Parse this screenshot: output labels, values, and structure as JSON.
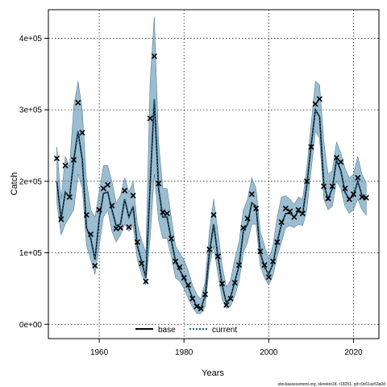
{
  "chart_data": {
    "type": "line",
    "xlabel": "Years",
    "ylabel": "Catch",
    "xlim": [
      1948,
      2026
    ],
    "ylim": [
      -20000,
      440000
    ],
    "x_ticks": [
      1960,
      1980,
      2000,
      2020
    ],
    "x_tick_labels": [
      "1960",
      "1980",
      "2000",
      "2020"
    ],
    "y_ticks": [
      0,
      100000,
      200000,
      300000,
      400000
    ],
    "y_tick_labels": [
      "0e+00",
      "1e+05",
      "2e+05",
      "3e+05",
      "4e+05"
    ],
    "grid": true,
    "legend_position": "bottom-center",
    "legend": [
      {
        "label": "base",
        "style": "solid",
        "color": "#000000"
      },
      {
        "label": "current",
        "style": "dotted",
        "color": "#1f5f7a"
      }
    ],
    "band_color": "#5a8fb0",
    "x": [
      1950,
      1951,
      1952,
      1953,
      1954,
      1955,
      1956,
      1957,
      1958,
      1959,
      1960,
      1961,
      1962,
      1963,
      1964,
      1965,
      1966,
      1967,
      1968,
      1969,
      1970,
      1971,
      1972,
      1973,
      1974,
      1975,
      1976,
      1977,
      1978,
      1979,
      1980,
      1981,
      1982,
      1983,
      1984,
      1985,
      1986,
      1987,
      1988,
      1989,
      1990,
      1991,
      1992,
      1993,
      1994,
      1995,
      1996,
      1997,
      1998,
      1999,
      2000,
      2001,
      2002,
      2003,
      2004,
      2005,
      2006,
      2007,
      2008,
      2009,
      2010,
      2011,
      2012,
      2013,
      2014,
      2015,
      2016,
      2017,
      2018,
      2019,
      2020,
      2021,
      2022,
      2023
    ],
    "series": [
      {
        "name": "base",
        "values": [
          200000,
          147000,
          185000,
          178000,
          230000,
          270000,
          230000,
          135000,
          120000,
          90000,
          148000,
          183000,
          185000,
          160000,
          138000,
          140000,
          175000,
          150000,
          165000,
          110000,
          88000,
          65000,
          195000,
          315000,
          190000,
          150000,
          150000,
          118000,
          88000,
          76000,
          65000,
          52000,
          37000,
          25000,
          22000,
          40000,
          100000,
          140000,
          95000,
          55000,
          30000,
          38000,
          60000,
          82000,
          130000,
          140000,
          170000,
          165000,
          100000,
          80000,
          70000,
          85000,
          115000,
          140000,
          155000,
          155000,
          150000,
          158000,
          155000,
          195000,
          250000,
          300000,
          290000,
          195000,
          175000,
          190000,
          230000,
          215000,
          185000,
          175000,
          180000,
          200000,
          180000,
          175000
        ]
      },
      {
        "name": "current",
        "values": [
          200000,
          147000,
          185000,
          178000,
          230000,
          270000,
          230000,
          135000,
          120000,
          90000,
          148000,
          183000,
          185000,
          160000,
          138000,
          140000,
          175000,
          150000,
          165000,
          110000,
          88000,
          65000,
          195000,
          315000,
          190000,
          150000,
          150000,
          118000,
          88000,
          76000,
          65000,
          52000,
          37000,
          25000,
          22000,
          40000,
          100000,
          140000,
          95000,
          55000,
          30000,
          38000,
          60000,
          82000,
          130000,
          140000,
          170000,
          165000,
          100000,
          80000,
          70000,
          85000,
          115000,
          140000,
          155000,
          155000,
          150000,
          158000,
          155000,
          195000,
          250000,
          300000,
          290000,
          195000,
          175000,
          190000,
          230000,
          215000,
          185000,
          175000,
          180000,
          200000,
          180000,
          175000
        ]
      }
    ],
    "band_upper": [
      248000,
      175000,
      235000,
      220000,
      305000,
      340000,
      300000,
      200000,
      160000,
      150000,
      185000,
      222000,
      222000,
      200000,
      170000,
      180000,
      205000,
      185000,
      200000,
      140000,
      118000,
      100000,
      340000,
      430000,
      255000,
      190000,
      190000,
      150000,
      110000,
      100000,
      90000,
      75000,
      55000,
      42000,
      35000,
      60000,
      130000,
      175000,
      130000,
      82000,
      52000,
      62000,
      92000,
      115000,
      160000,
      175000,
      205000,
      190000,
      130000,
      110000,
      92000,
      110000,
      150000,
      178000,
      180000,
      175000,
      168000,
      178000,
      175000,
      220000,
      280000,
      340000,
      335000,
      255000,
      210000,
      215000,
      255000,
      240000,
      218000,
      205000,
      210000,
      235000,
      210000,
      198000
    ],
    "band_lower": [
      170000,
      125000,
      140000,
      150000,
      160000,
      210000,
      190000,
      110000,
      90000,
      70000,
      110000,
      150000,
      160000,
      130000,
      115000,
      125000,
      140000,
      130000,
      138000,
      90000,
      70000,
      55000,
      120000,
      210000,
      145000,
      120000,
      120000,
      95000,
      65000,
      60000,
      50000,
      36000,
      24000,
      15000,
      15000,
      25000,
      80000,
      110000,
      70000,
      35000,
      22000,
      25000,
      40000,
      60000,
      100000,
      115000,
      140000,
      140000,
      82000,
      65000,
      55000,
      68000,
      95000,
      115000,
      135000,
      138000,
      135000,
      140000,
      138000,
      160000,
      215000,
      270000,
      260000,
      175000,
      160000,
      165000,
      200000,
      190000,
      165000,
      155000,
      160000,
      175000,
      160000,
      152000
    ],
    "points": [
      [
        1950,
        232000
      ],
      [
        1951,
        147000
      ],
      [
        1952,
        222000
      ],
      [
        1953,
        178000
      ],
      [
        1954,
        230000
      ],
      [
        1955,
        310000
      ],
      [
        1956,
        268000
      ],
      [
        1957,
        153000
      ],
      [
        1958,
        126000
      ],
      [
        1959,
        82000
      ],
      [
        1960,
        160000
      ],
      [
        1961,
        190000
      ],
      [
        1962,
        195000
      ],
      [
        1963,
        166000
      ],
      [
        1964,
        134000
      ],
      [
        1965,
        135000
      ],
      [
        1966,
        187000
      ],
      [
        1967,
        136000
      ],
      [
        1968,
        180000
      ],
      [
        1969,
        115000
      ],
      [
        1970,
        85000
      ],
      [
        1971,
        60000
      ],
      [
        1972,
        288000
      ],
      [
        1973,
        375000
      ],
      [
        1974,
        197000
      ],
      [
        1975,
        157000
      ],
      [
        1976,
        155000
      ],
      [
        1977,
        120000
      ],
      [
        1978,
        88000
      ],
      [
        1979,
        80000
      ],
      [
        1980,
        65000
      ],
      [
        1981,
        55000
      ],
      [
        1982,
        36000
      ],
      [
        1983,
        25000
      ],
      [
        1984,
        22000
      ],
      [
        1985,
        42000
      ],
      [
        1986,
        105000
      ],
      [
        1987,
        153000
      ],
      [
        1988,
        95000
      ],
      [
        1989,
        57000
      ],
      [
        1990,
        27000
      ],
      [
        1991,
        36000
      ],
      [
        1992,
        58000
      ],
      [
        1993,
        83000
      ],
      [
        1994,
        135000
      ],
      [
        1995,
        148000
      ],
      [
        1996,
        182000
      ],
      [
        1997,
        162000
      ],
      [
        1998,
        102000
      ],
      [
        1999,
        83000
      ],
      [
        2000,
        66000
      ],
      [
        2001,
        88000
      ],
      [
        2002,
        115000
      ],
      [
        2003,
        143000
      ],
      [
        2004,
        162000
      ],
      [
        2005,
        158000
      ],
      [
        2006,
        150000
      ],
      [
        2007,
        160000
      ],
      [
        2008,
        155000
      ],
      [
        2009,
        200000
      ],
      [
        2010,
        248000
      ],
      [
        2011,
        308000
      ],
      [
        2012,
        315000
      ],
      [
        2013,
        193000
      ],
      [
        2014,
        176000
      ],
      [
        2015,
        193000
      ],
      [
        2016,
        233000
      ],
      [
        2017,
        227000
      ],
      [
        2018,
        190000
      ],
      [
        2019,
        175000
      ],
      [
        2020,
        182000
      ],
      [
        2021,
        205000
      ],
      [
        2022,
        178000
      ],
      [
        2023,
        177000
      ]
    ]
  },
  "footer": {
    "text": "stockassessment.org, skrestor24, r18251, git:c9c61ac53a0d"
  }
}
